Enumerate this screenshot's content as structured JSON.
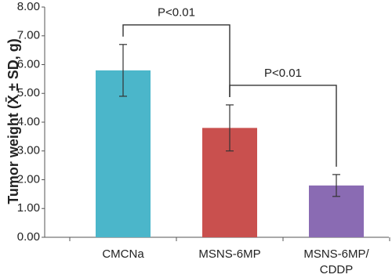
{
  "chart_data": {
    "type": "bar",
    "y_label": "Tumor weight (X̄ ± SD, g)",
    "categories": [
      "CMCNa",
      "MSNS-6MP",
      "MSNS-6MP/\nCDDP"
    ],
    "values": [
      5.8,
      3.8,
      1.8
    ],
    "errors": [
      0.9,
      0.8,
      0.38
    ],
    "colors": [
      "#4bb6ca",
      "#c9504e",
      "#8a6bb3"
    ],
    "ylim": [
      0,
      8
    ],
    "yticks": [
      {
        "value": 0,
        "label": "0.00"
      },
      {
        "value": 1,
        "label": "1.00"
      },
      {
        "value": 2,
        "label": "2.00"
      },
      {
        "value": 3,
        "label": "3.00"
      },
      {
        "value": 4,
        "label": "4.00"
      },
      {
        "value": 5,
        "label": "5.00"
      },
      {
        "value": 6,
        "label": "6.00"
      },
      {
        "value": 7,
        "label": "7.00"
      },
      {
        "value": 8,
        "label": "8.00"
      }
    ],
    "annotations": [
      {
        "text": "P<0.01",
        "from": 0,
        "to": 1
      },
      {
        "text": "P<0.01",
        "from": 1,
        "to": 2
      }
    ]
  }
}
